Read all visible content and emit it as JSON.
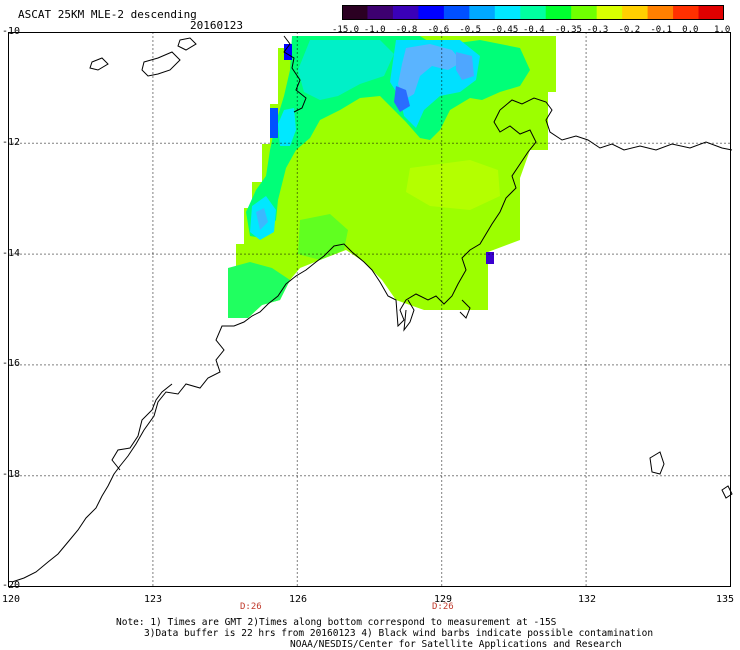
{
  "header": {
    "title": "ASCAT 25KM MLE-2 descending",
    "date": "20160123"
  },
  "colorbar": {
    "labels": [
      "-15.0",
      "-1.0",
      "-0.8",
      "-0.6",
      "-0.5",
      "-0.45",
      "-0.4",
      "-0.35",
      "-0.3",
      "-0.2",
      "-0.1",
      "0.0",
      "1.0"
    ],
    "colors": [
      "#2b0022",
      "#3d0070",
      "#3a00b8",
      "#0000ff",
      "#0050ff",
      "#00a8ff",
      "#00e8ff",
      "#00ffa0",
      "#00ff30",
      "#70ff00",
      "#d8ff00",
      "#ffd000",
      "#ff8000",
      "#ff3000",
      "#e00000"
    ]
  },
  "axes": {
    "lat_labels": [
      "-10",
      "-12",
      "-14",
      "-16",
      "-18",
      "-20"
    ],
    "lon_labels": [
      "120",
      "123",
      "126",
      "129",
      "132",
      "135"
    ],
    "lat_range": [
      -20,
      -10
    ],
    "lon_range": [
      120,
      135
    ]
  },
  "times": [
    {
      "label": "D:26",
      "lon": 125.0
    },
    {
      "label": "D:26",
      "lon": 129.0
    }
  ],
  "notes": {
    "line1": "Note: 1) Times are GMT 2)Times along bottom correspond to measurement at -15S",
    "line2": "3)Data buffer is 22 hrs from 20160123 4) Black wind barbs indicate possible contamination",
    "line3": "NOAA/NESDIS/Center for Satellite Applications and Research"
  }
}
